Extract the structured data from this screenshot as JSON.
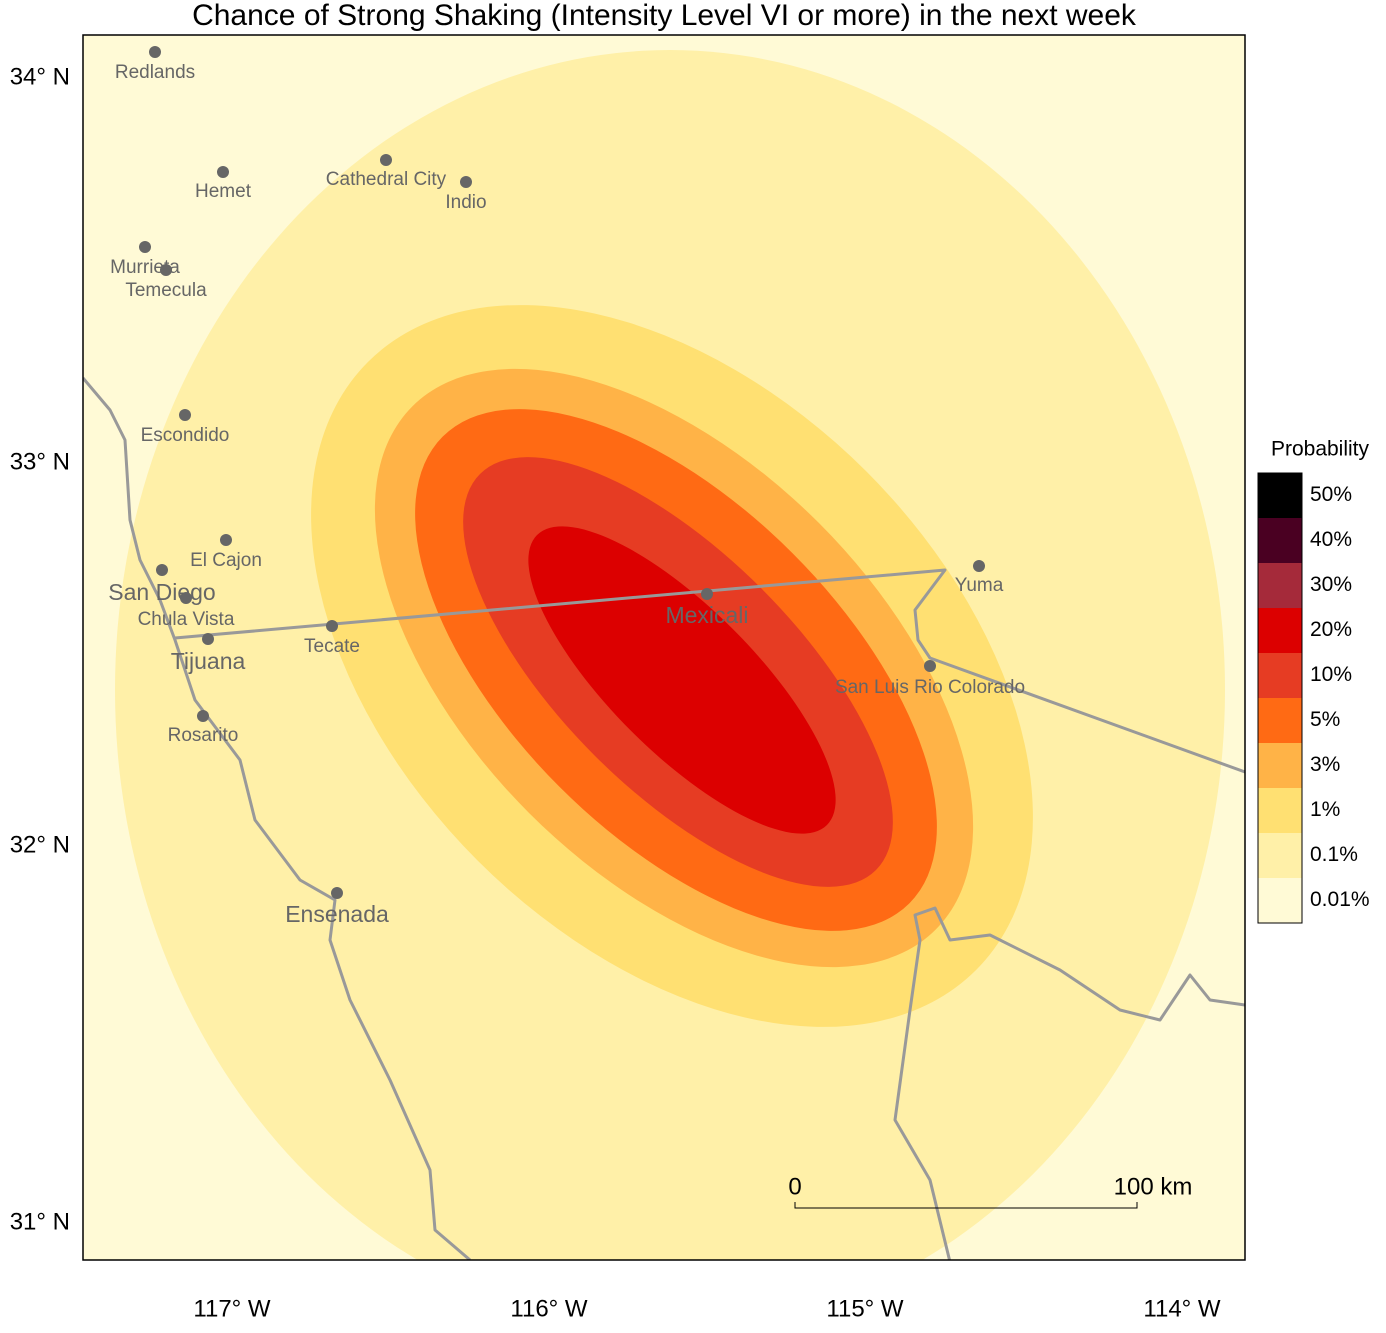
{
  "title": "Chance of Strong Shaking (Intensity Level VI or more) in the next week",
  "axes": {
    "lat_labels": [
      "34° N",
      "33° N",
      "32° N",
      "31° N"
    ],
    "lon_labels": [
      "117° W",
      "116° W",
      "115° W",
      "114° W"
    ]
  },
  "legend": {
    "title": "Probability",
    "items": [
      {
        "label": "50%",
        "color": "#000000"
      },
      {
        "label": "40%",
        "color": "#4a0022"
      },
      {
        "label": "30%",
        "color": "#a52a3a"
      },
      {
        "label": "20%",
        "color": "#dc0000"
      },
      {
        "label": "10%",
        "color": "#e63c23"
      },
      {
        "label": "5%",
        "color": "#ff6a14"
      },
      {
        "label": "3%",
        "color": "#ffb347"
      },
      {
        "label": "1%",
        "color": "#ffe072"
      },
      {
        "label": "0.1%",
        "color": "#fff0a8"
      },
      {
        "label": "0.01%",
        "color": "#fffad6"
      }
    ]
  },
  "cities": [
    {
      "name": "Redlands"
    },
    {
      "name": "Hemet"
    },
    {
      "name": "Cathedral City"
    },
    {
      "name": "Indio"
    },
    {
      "name": "Murrieta"
    },
    {
      "name": "Temecula"
    },
    {
      "name": "Escondido"
    },
    {
      "name": "El Cajon"
    },
    {
      "name": "San Diego"
    },
    {
      "name": "Chula Vista"
    },
    {
      "name": "Tijuana"
    },
    {
      "name": "Tecate"
    },
    {
      "name": "Mexicali"
    },
    {
      "name": "Yuma"
    },
    {
      "name": "San Luis Rio Colorado"
    },
    {
      "name": "Rosarito"
    },
    {
      "name": "Ensenada"
    }
  ],
  "scale_bar": {
    "start": "0",
    "end": "100 km"
  }
}
